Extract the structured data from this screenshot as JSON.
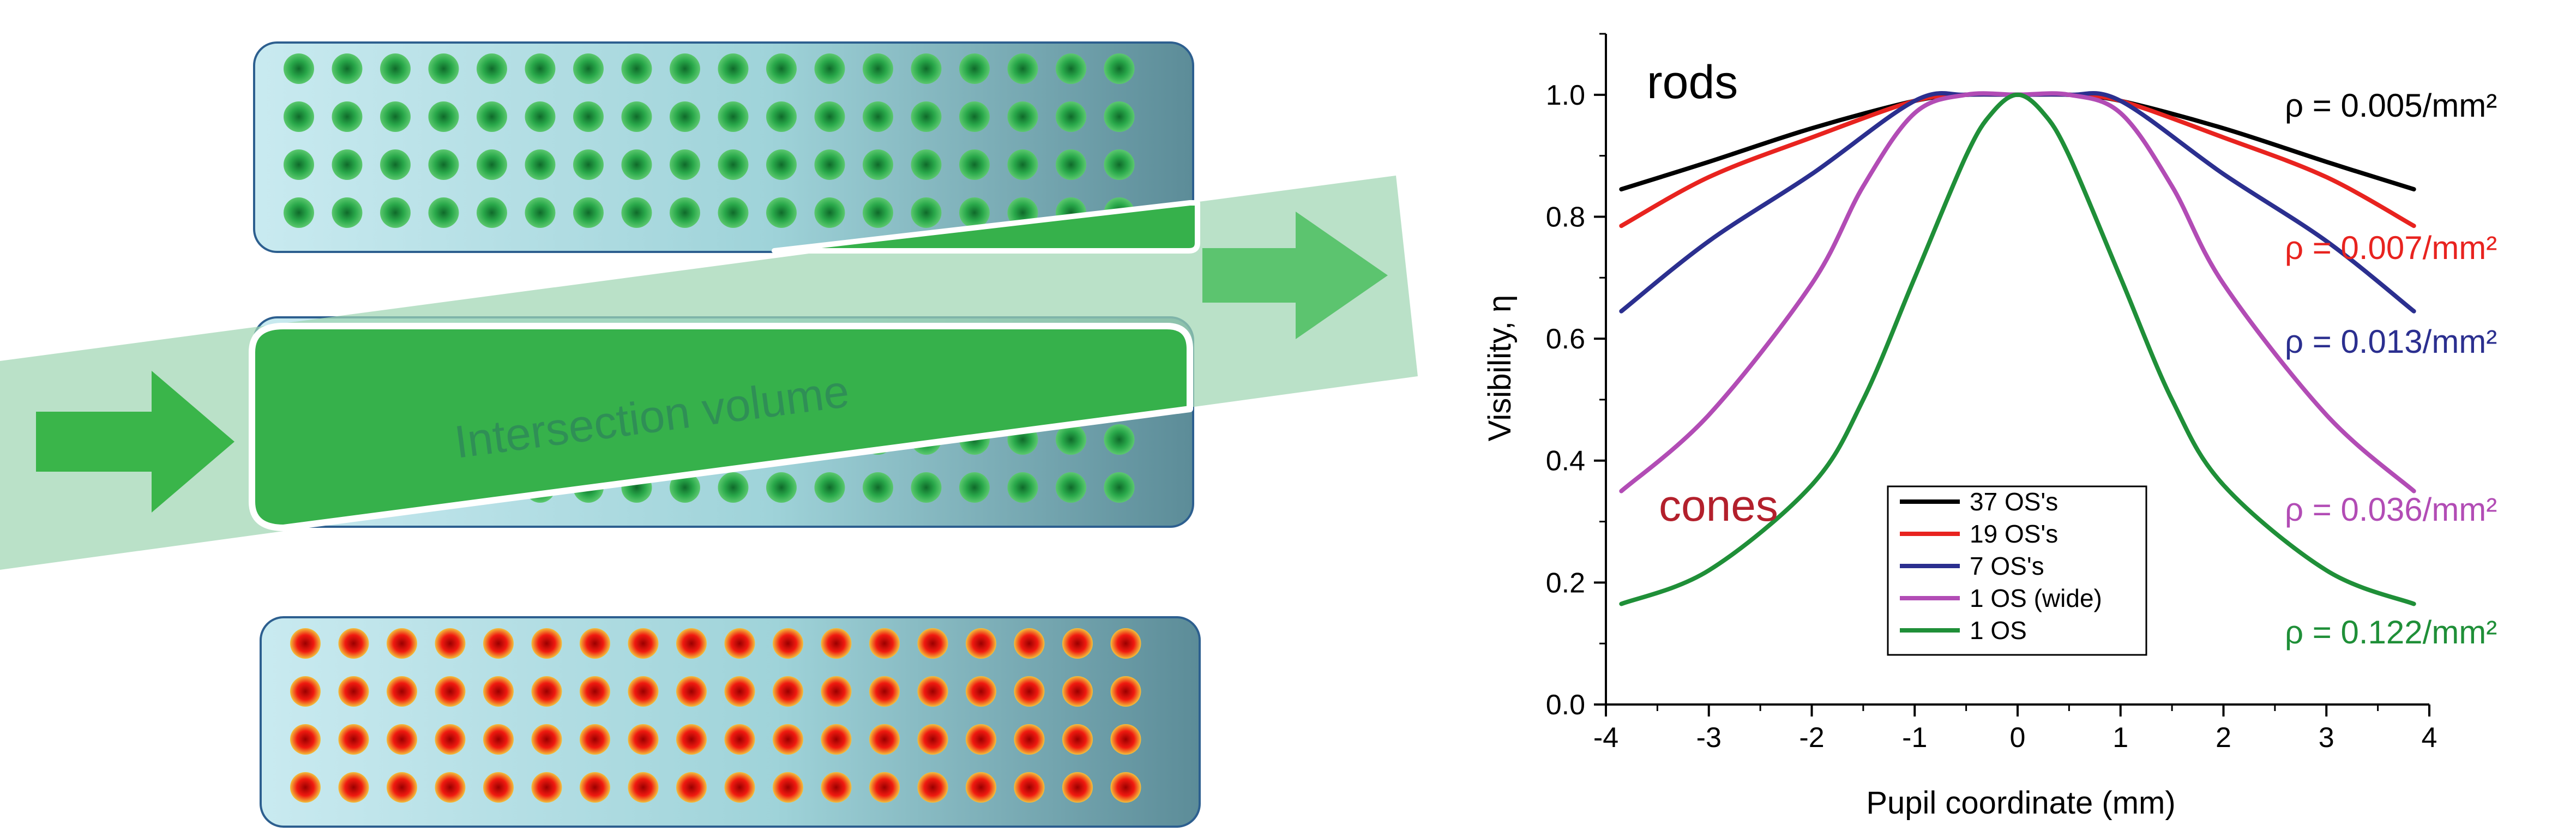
{
  "diagram": {
    "intersection_label": "Intersection volume"
  },
  "chart_data": {
    "type": "line",
    "xlabel": "Pupil coordinate (mm)",
    "ylabel": "Visibility, η",
    "xlim": [
      -4,
      4
    ],
    "ylim": [
      0,
      1.1
    ],
    "x_ticks": [
      "-4",
      "-3",
      "-2",
      "-1",
      "0",
      "1",
      "2",
      "3",
      "4"
    ],
    "y_ticks": [
      "0.0",
      "0.2",
      "0.4",
      "0.6",
      "0.8",
      "1.0"
    ],
    "annotations": {
      "rods": "rods",
      "cones": "cones"
    },
    "legend": {
      "placement": "bottom-center"
    },
    "series": [
      {
        "name": "37 OS's",
        "color": "#000000",
        "density_label": "ρ = 0.005/mm²",
        "x": [
          -3.85,
          -3,
          -2,
          -1,
          -0.5,
          0,
          0.5,
          1,
          2,
          3,
          3.85
        ],
        "y": [
          0.845,
          0.89,
          0.945,
          0.99,
          1.0,
          1.0,
          1.0,
          0.99,
          0.945,
          0.89,
          0.845
        ]
      },
      {
        "name": "19 OS's",
        "color": "#e8231f",
        "density_label": "ρ = 0.007/mm²",
        "x": [
          -3.85,
          -3,
          -2,
          -1,
          -0.5,
          0,
          0.5,
          1,
          2,
          3,
          3.85
        ],
        "y": [
          0.785,
          0.865,
          0.93,
          0.99,
          1.0,
          1.0,
          1.0,
          0.99,
          0.93,
          0.865,
          0.785
        ]
      },
      {
        "name": "7 OS's",
        "color": "#2b2f8f",
        "density_label": "ρ = 0.013/mm²",
        "x": [
          -3.85,
          -3,
          -2,
          -1,
          -0.5,
          0,
          0.5,
          1,
          2,
          3,
          3.85
        ],
        "y": [
          0.645,
          0.76,
          0.87,
          0.99,
          1.0,
          1.0,
          1.0,
          0.99,
          0.87,
          0.76,
          0.645
        ]
      },
      {
        "name": "1 OS (wide)",
        "color": "#b24cb5",
        "density_label": "ρ = 0.036/mm²",
        "x": [
          -3.85,
          -3,
          -2,
          -1.5,
          -1,
          -0.5,
          0,
          0.5,
          1,
          1.5,
          2,
          3,
          3.85
        ],
        "y": [
          0.35,
          0.475,
          0.69,
          0.85,
          0.97,
          1.0,
          1.0,
          1.0,
          0.97,
          0.85,
          0.69,
          0.475,
          0.35
        ]
      },
      {
        "name": "1 OS",
        "color": "#1f8f38",
        "density_label": "ρ = 0.122/mm²",
        "x": [
          -3.85,
          -3,
          -2,
          -1.5,
          -1,
          -0.5,
          -0.25,
          0,
          0.25,
          0.5,
          1,
          1.5,
          2,
          3,
          3.85
        ],
        "y": [
          0.165,
          0.22,
          0.36,
          0.5,
          0.7,
          0.9,
          0.97,
          1.0,
          0.97,
          0.9,
          0.7,
          0.5,
          0.36,
          0.22,
          0.165
        ]
      }
    ]
  }
}
